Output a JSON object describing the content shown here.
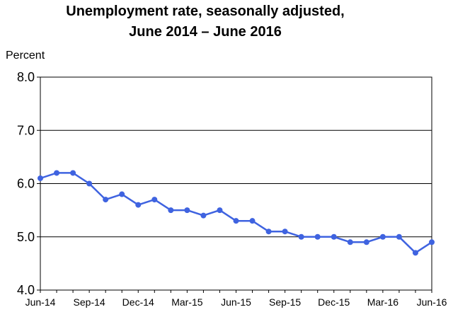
{
  "chart_data": {
    "type": "line",
    "title": "Unemployment rate, seasonally adjusted,",
    "subtitle": "June 2014 – June 2016",
    "ylabel": "Percent",
    "xlabel": "",
    "ylim": [
      4.0,
      8.0
    ],
    "yticks": [
      "4.0",
      "5.0",
      "6.0",
      "7.0",
      "8.0"
    ],
    "ytick_values": [
      4.0,
      5.0,
      6.0,
      7.0,
      8.0
    ],
    "xtick_labels": [
      "Jun-14",
      "Sep-14",
      "Dec-14",
      "Mar-15",
      "Jun-15",
      "Sep-15",
      "Dec-15",
      "Mar-16",
      "Jun-16"
    ],
    "xtick_indices": [
      0,
      3,
      6,
      9,
      12,
      15,
      18,
      21,
      24
    ],
    "grid": true,
    "legend": "none",
    "series": [
      {
        "color": "#3f63e0",
        "values": [
          6.1,
          6.2,
          6.2,
          6.0,
          5.7,
          5.8,
          5.6,
          5.7,
          5.5,
          5.5,
          5.4,
          5.5,
          5.3,
          5.3,
          5.1,
          5.1,
          5.0,
          5.0,
          5.0,
          4.9,
          4.9,
          5.0,
          5.0,
          4.7,
          4.9
        ]
      }
    ]
  }
}
